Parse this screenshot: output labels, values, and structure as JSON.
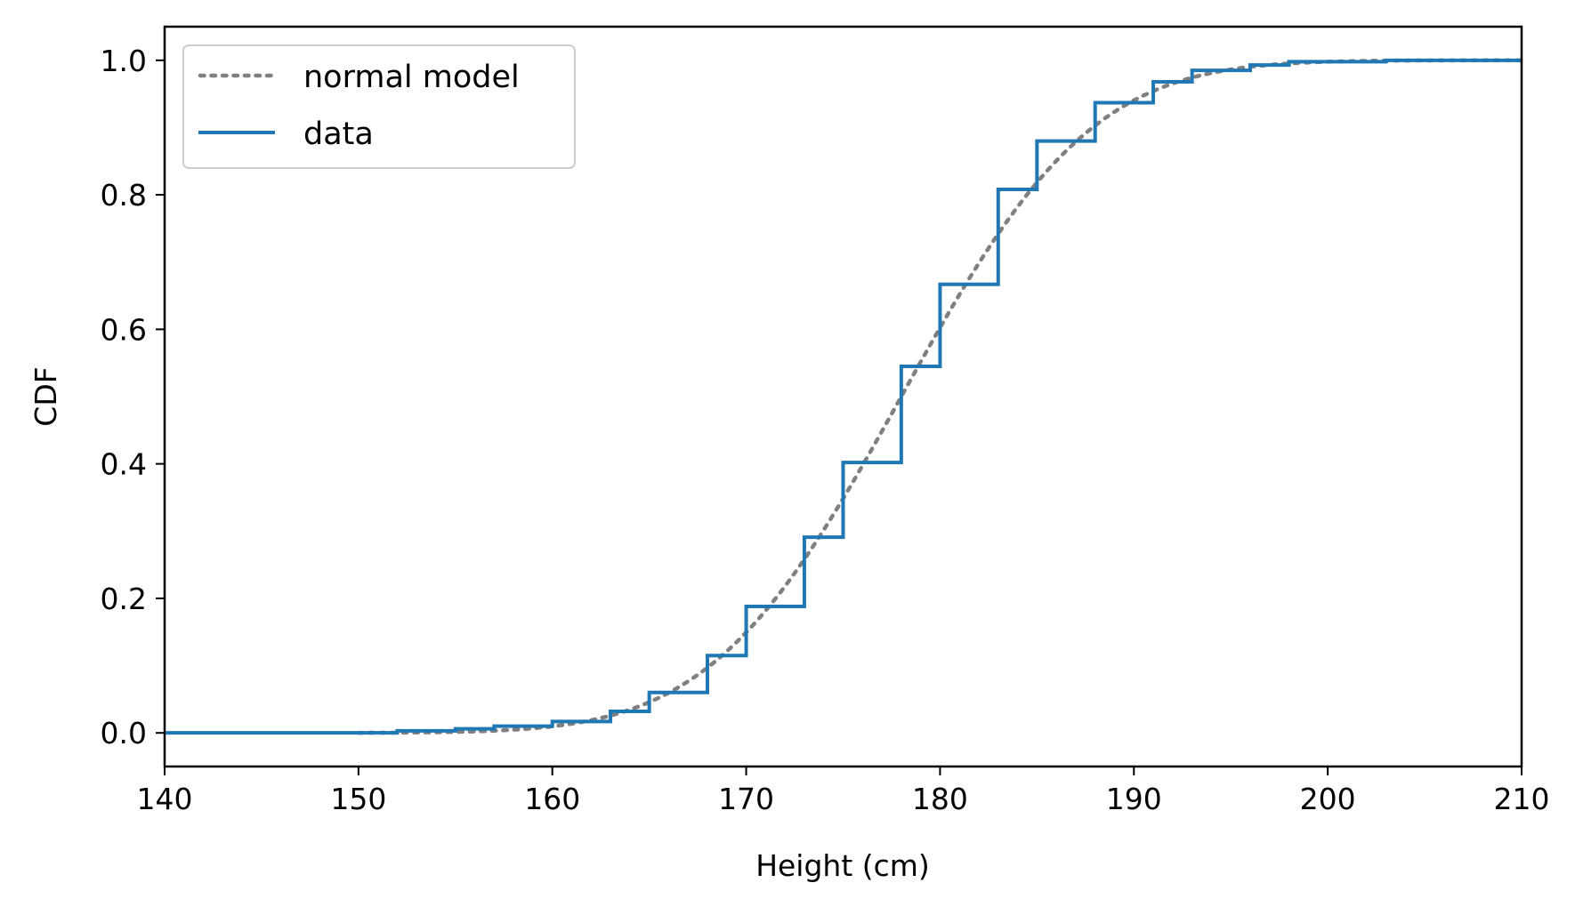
{
  "chart_data": {
    "type": "line",
    "title": "",
    "xlabel": "Height (cm)",
    "ylabel": "CDF",
    "xlim": [
      140,
      210
    ],
    "ylim": [
      -0.05,
      1.05
    ],
    "x_ticks": [
      140,
      150,
      160,
      170,
      180,
      190,
      200,
      210
    ],
    "x_tick_labels": [
      "140",
      "150",
      "160",
      "170",
      "180",
      "190",
      "200",
      "210"
    ],
    "y_ticks": [
      0.0,
      0.2,
      0.4,
      0.6,
      0.8,
      1.0
    ],
    "y_tick_labels": [
      "0.0",
      "0.2",
      "0.4",
      "0.6",
      "0.8",
      "1.0"
    ],
    "grid": false,
    "legend_position": "top-left",
    "series": [
      {
        "name": "normal model",
        "style": "dotted",
        "color": "#808080",
        "model": "normal-cdf",
        "mean": 178,
        "std": 7.7,
        "x_range": [
          150,
          210
        ]
      },
      {
        "name": "data",
        "style": "step",
        "color": "#1f77b4",
        "x": [
          140,
          152,
          155,
          157,
          160,
          163,
          165,
          168,
          170,
          173,
          175,
          178,
          180,
          183,
          185,
          188,
          191,
          193,
          196,
          198,
          203,
          210
        ],
        "y": [
          0.0,
          0.003,
          0.006,
          0.01,
          0.017,
          0.032,
          0.06,
          0.115,
          0.188,
          0.291,
          0.402,
          0.545,
          0.667,
          0.808,
          0.88,
          0.937,
          0.968,
          0.985,
          0.993,
          0.998,
          1.0,
          1.0
        ]
      }
    ]
  }
}
